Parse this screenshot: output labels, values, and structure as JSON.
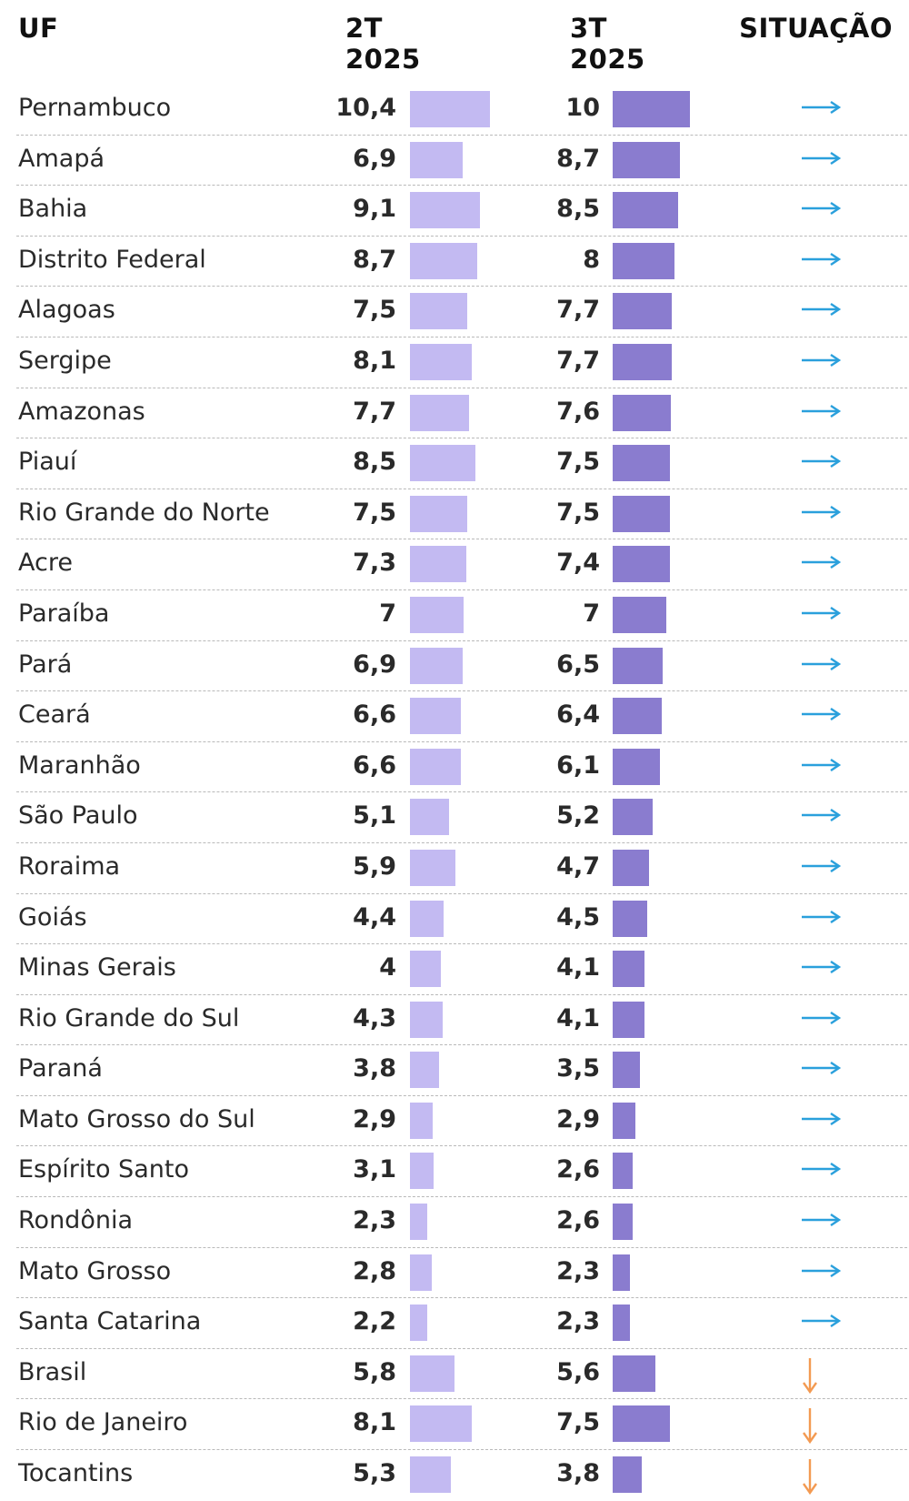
{
  "header": {
    "uf": "UF",
    "q2": "2T 2025",
    "q3": "3T 2025",
    "situacao": "SITUAÇÃO"
  },
  "colors": {
    "bar_q2": "#c3baf2",
    "bar_q3": "#8a7ccf",
    "stable_arrow": "#2aa0dc",
    "down_arrow": "#f39a52"
  },
  "chart_data": {
    "type": "table",
    "title": "",
    "columns": [
      "UF",
      "2T 2025",
      "3T 2025",
      "SITUAÇÃO"
    ],
    "rows": [
      {
        "uf": "Pernambuco",
        "q2": "10,4",
        "q3": "10",
        "q2_value": 10.4,
        "q3_value": 10.0,
        "situacao": "stable"
      },
      {
        "uf": "Amapá",
        "q2": "6,9",
        "q3": "8,7",
        "q2_value": 6.9,
        "q3_value": 8.7,
        "situacao": "stable"
      },
      {
        "uf": "Bahia",
        "q2": "9,1",
        "q3": "8,5",
        "q2_value": 9.1,
        "q3_value": 8.5,
        "situacao": "stable"
      },
      {
        "uf": "Distrito Federal",
        "q2": "8,7",
        "q3": "8",
        "q2_value": 8.7,
        "q3_value": 8.0,
        "situacao": "stable"
      },
      {
        "uf": "Alagoas",
        "q2": "7,5",
        "q3": "7,7",
        "q2_value": 7.5,
        "q3_value": 7.7,
        "situacao": "stable"
      },
      {
        "uf": "Sergipe",
        "q2": "8,1",
        "q3": "7,7",
        "q2_value": 8.1,
        "q3_value": 7.7,
        "situacao": "stable"
      },
      {
        "uf": "Amazonas",
        "q2": "7,7",
        "q3": "7,6",
        "q2_value": 7.7,
        "q3_value": 7.6,
        "situacao": "stable"
      },
      {
        "uf": "Piauí",
        "q2": "8,5",
        "q3": "7,5",
        "q2_value": 8.5,
        "q3_value": 7.5,
        "situacao": "stable"
      },
      {
        "uf": "Rio Grande do Norte",
        "q2": "7,5",
        "q3": "7,5",
        "q2_value": 7.5,
        "q3_value": 7.5,
        "situacao": "stable"
      },
      {
        "uf": "Acre",
        "q2": "7,3",
        "q3": "7,4",
        "q2_value": 7.3,
        "q3_value": 7.4,
        "situacao": "stable"
      },
      {
        "uf": "Paraíba",
        "q2": "7",
        "q3": "7",
        "q2_value": 7.0,
        "q3_value": 7.0,
        "situacao": "stable"
      },
      {
        "uf": "Pará",
        "q2": "6,9",
        "q3": "6,5",
        "q2_value": 6.9,
        "q3_value": 6.5,
        "situacao": "stable"
      },
      {
        "uf": "Ceará",
        "q2": "6,6",
        "q3": "6,4",
        "q2_value": 6.6,
        "q3_value": 6.4,
        "situacao": "stable"
      },
      {
        "uf": "Maranhão",
        "q2": "6,6",
        "q3": "6,1",
        "q2_value": 6.6,
        "q3_value": 6.1,
        "situacao": "stable"
      },
      {
        "uf": "São Paulo",
        "q2": "5,1",
        "q3": "5,2",
        "q2_value": 5.1,
        "q3_value": 5.2,
        "situacao": "stable"
      },
      {
        "uf": "Roraima",
        "q2": "5,9",
        "q3": "4,7",
        "q2_value": 5.9,
        "q3_value": 4.7,
        "situacao": "stable"
      },
      {
        "uf": "Goiás",
        "q2": "4,4",
        "q3": "4,5",
        "q2_value": 4.4,
        "q3_value": 4.5,
        "situacao": "stable"
      },
      {
        "uf": "Minas Gerais",
        "q2": "4",
        "q3": "4,1",
        "q2_value": 4.0,
        "q3_value": 4.1,
        "situacao": "stable"
      },
      {
        "uf": "Rio Grande do Sul",
        "q2": "4,3",
        "q3": "4,1",
        "q2_value": 4.3,
        "q3_value": 4.1,
        "situacao": "stable"
      },
      {
        "uf": "Paraná",
        "q2": "3,8",
        "q3": "3,5",
        "q2_value": 3.8,
        "q3_value": 3.5,
        "situacao": "stable"
      },
      {
        "uf": "Mato Grosso do Sul",
        "q2": "2,9",
        "q3": "2,9",
        "q2_value": 2.9,
        "q3_value": 2.9,
        "situacao": "stable"
      },
      {
        "uf": "Espírito Santo",
        "q2": "3,1",
        "q3": "2,6",
        "q2_value": 3.1,
        "q3_value": 2.6,
        "situacao": "stable"
      },
      {
        "uf": "Rondônia",
        "q2": "2,3",
        "q3": "2,6",
        "q2_value": 2.3,
        "q3_value": 2.6,
        "situacao": "stable"
      },
      {
        "uf": "Mato Grosso",
        "q2": "2,8",
        "q3": "2,3",
        "q2_value": 2.8,
        "q3_value": 2.3,
        "situacao": "stable"
      },
      {
        "uf": "Santa Catarina",
        "q2": "2,2",
        "q3": "2,3",
        "q2_value": 2.2,
        "q3_value": 2.3,
        "situacao": "stable"
      },
      {
        "uf": "Brasil",
        "q2": "5,8",
        "q3": "5,6",
        "q2_value": 5.8,
        "q3_value": 5.6,
        "situacao": "down"
      },
      {
        "uf": "Rio de Janeiro",
        "q2": "8,1",
        "q3": "7,5",
        "q2_value": 8.1,
        "q3_value": 7.5,
        "situacao": "down"
      },
      {
        "uf": "Tocantins",
        "q2": "5,3",
        "q3": "3,8",
        "q2_value": 5.3,
        "q3_value": 3.8,
        "situacao": "down"
      }
    ]
  }
}
